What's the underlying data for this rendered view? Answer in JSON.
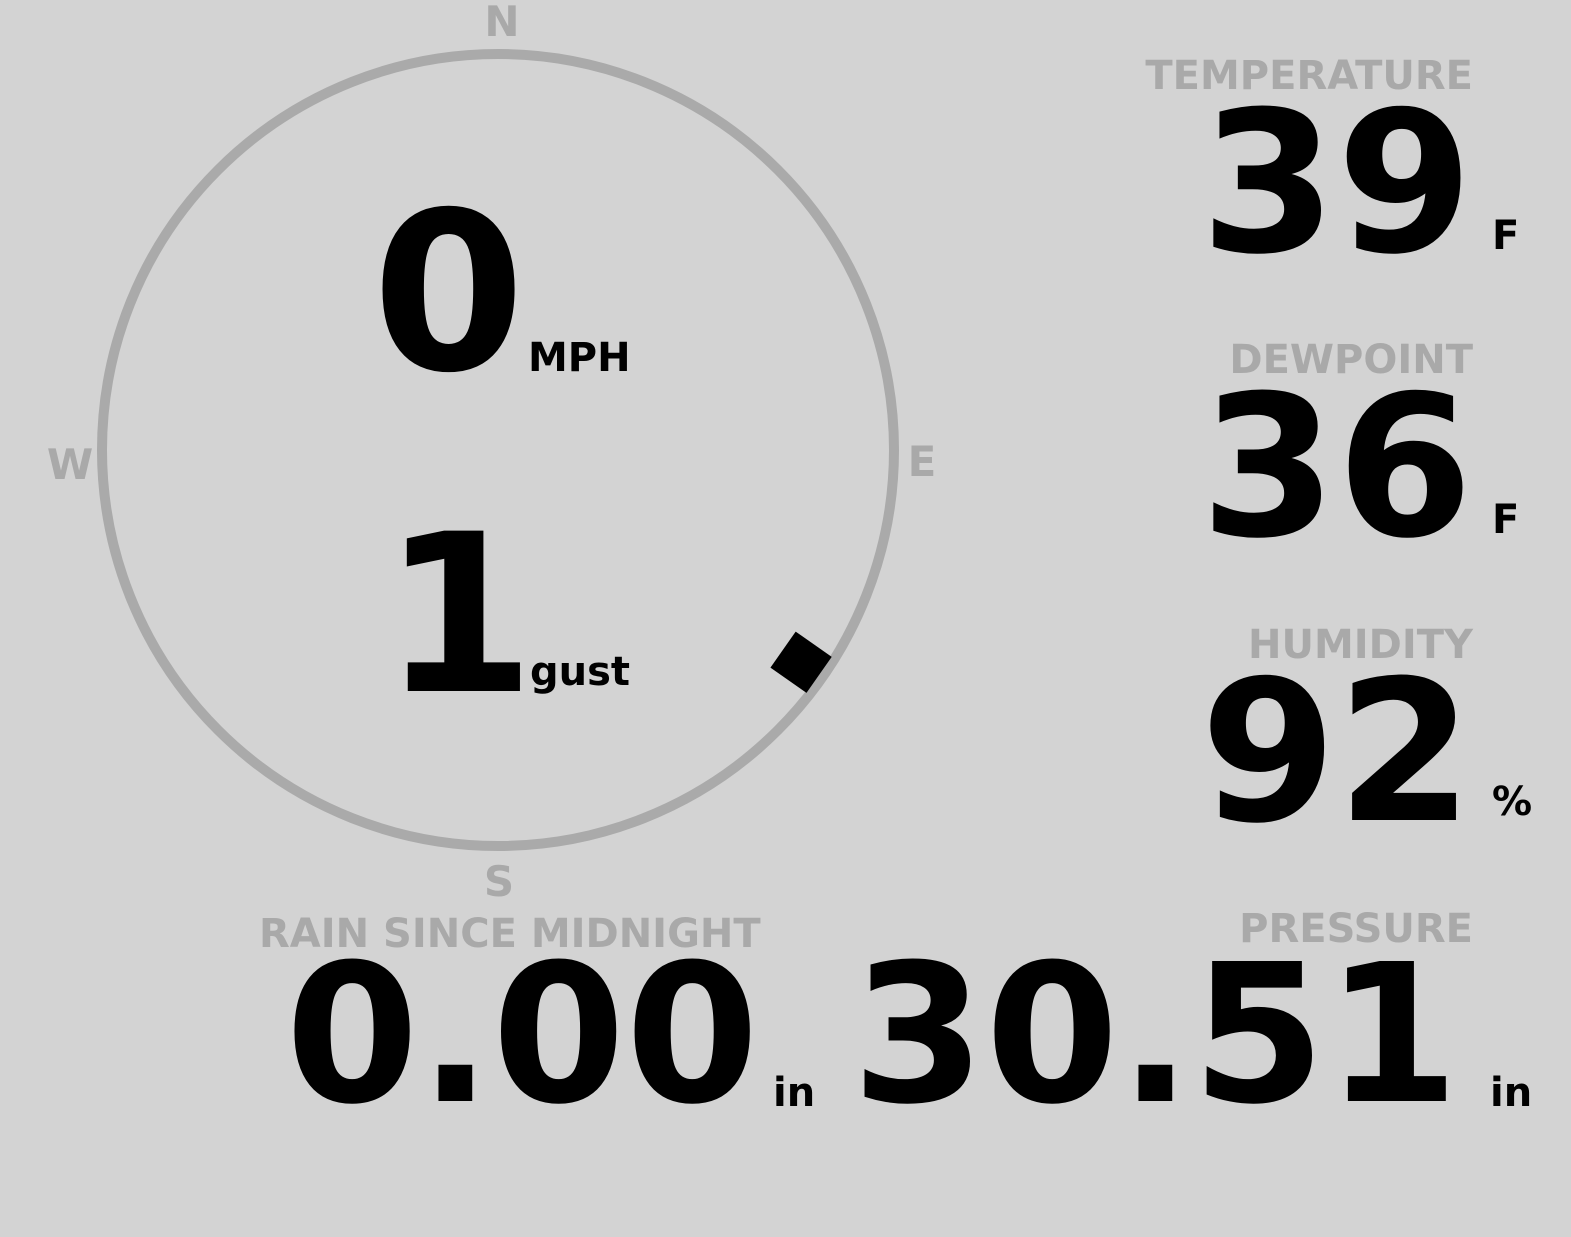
{
  "wind": {
    "speed": "0",
    "speed_unit": "MPH",
    "gust": "1",
    "gust_unit": "gust",
    "direction_deg": 125,
    "compass": {
      "n": "N",
      "e": "E",
      "s": "S",
      "w": "W"
    }
  },
  "temperature": {
    "label": "TEMPERATURE",
    "value": "39",
    "unit": "F"
  },
  "dewpoint": {
    "label": "DEWPOINT",
    "value": "36",
    "unit": "F"
  },
  "humidity": {
    "label": "HUMIDITY",
    "value": "92",
    "unit": "%"
  },
  "rain": {
    "label": "RAIN SINCE MIDNIGHT",
    "value": "0.00",
    "unit": "in"
  },
  "pressure": {
    "label": "PRESSURE",
    "value": "30.51",
    "unit": "in"
  },
  "colors": {
    "background": "#d3d3d3",
    "label": "#a9a9a9",
    "value": "#000000",
    "ring": "#aaaaaa"
  }
}
